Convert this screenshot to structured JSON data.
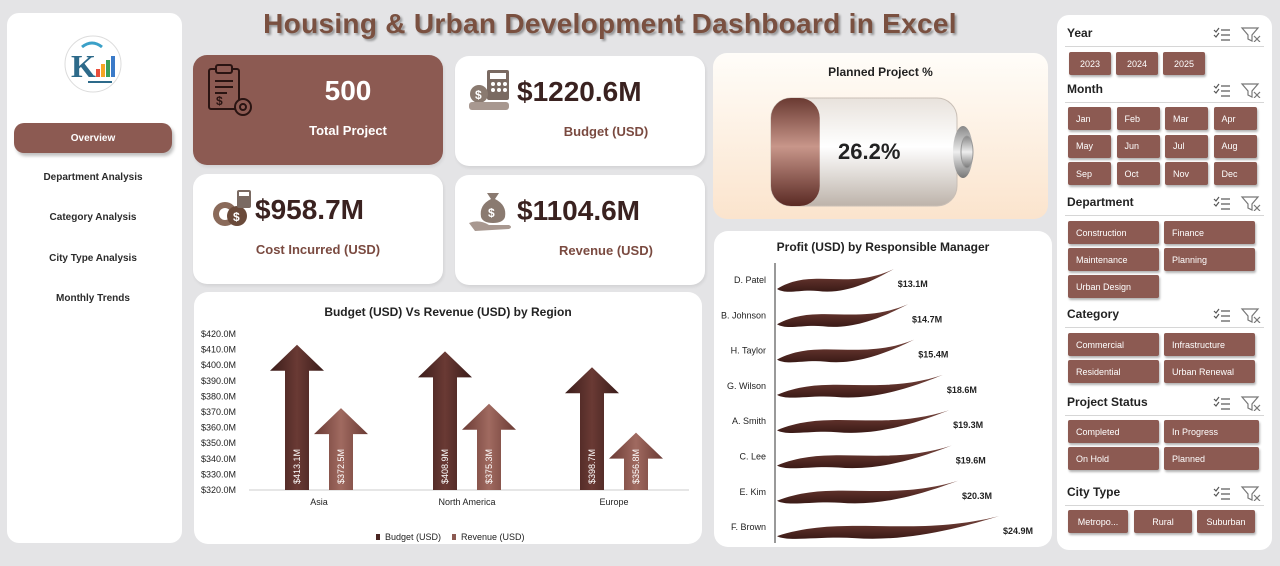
{
  "title": "Housing & Urban Development Dashboard in Excel",
  "nav": {
    "items": [
      {
        "label": "Overview",
        "active": true
      },
      {
        "label": "Department Analysis",
        "active": false
      },
      {
        "label": "Category Analysis",
        "active": false
      },
      {
        "label": "City Type Analysis",
        "active": false
      },
      {
        "label": "Monthly Trends",
        "active": false
      }
    ]
  },
  "kpis": {
    "total_project": {
      "value": "500",
      "label": "Total Project"
    },
    "budget": {
      "value": "$1220.6M",
      "label": "Budget (USD)"
    },
    "cost": {
      "value": "$958.7M",
      "label": "Cost Incurred (USD)"
    },
    "revenue": {
      "value": "$1104.6M",
      "label": "Revenue (USD)"
    }
  },
  "planned": {
    "title": "Planned Project %",
    "value": "26.2%",
    "fraction": 0.262
  },
  "colors": {
    "accent": "#8c5a52",
    "dark": "#4a2622",
    "text": "#3a2220"
  },
  "filters": {
    "year": {
      "title": "Year",
      "options": [
        "2023",
        "2024",
        "2025"
      ]
    },
    "month": {
      "title": "Month",
      "options": [
        "Jan",
        "Feb",
        "Mar",
        "Apr",
        "May",
        "Jun",
        "Jul",
        "Aug",
        "Sep",
        "Oct",
        "Nov",
        "Dec"
      ]
    },
    "department": {
      "title": "Department",
      "options": [
        "Construction",
        "Finance",
        "Maintenance",
        "Planning",
        "Urban Design"
      ]
    },
    "category": {
      "title": "Category",
      "options": [
        "Commercial",
        "Infrastructure",
        "Residential",
        "Urban Renewal"
      ]
    },
    "status": {
      "title": "Project Status",
      "options": [
        "Completed",
        "In Progress",
        "On Hold",
        "Planned"
      ]
    },
    "city_type": {
      "title": "City Type",
      "options": [
        "Metropo...",
        "Rural",
        "Suburban"
      ]
    }
  },
  "chart_data": [
    {
      "type": "bar",
      "title": "Budget (USD) Vs Revenue (USD) by Region",
      "categories": [
        "Asia",
        "North America",
        "Europe"
      ],
      "series": [
        {
          "name": "Budget (USD)",
          "values": [
            413.1,
            408.9,
            398.7
          ],
          "labels": [
            "$413.1M",
            "$408.9M",
            "$398.7M"
          ]
        },
        {
          "name": "Revenue (USD)",
          "values": [
            372.5,
            375.3,
            356.8
          ],
          "labels": [
            "$372.5M",
            "$375.3M",
            "$356.8M"
          ]
        }
      ],
      "yticks": [
        "$420.0M",
        "$410.0M",
        "$400.0M",
        "$390.0M",
        "$380.0M",
        "$370.0M",
        "$360.0M",
        "$350.0M",
        "$340.0M",
        "$330.0M",
        "$320.0M"
      ],
      "ylim": [
        320,
        420
      ],
      "legend": "bottom"
    },
    {
      "type": "bar",
      "title": "Profit (USD) by Responsible Manager",
      "categories": [
        "D. Patel",
        "B. Johnson",
        "H. Taylor",
        "G. Wilson",
        "A. Smith",
        "C. Lee",
        "E. Kim",
        "F. Brown"
      ],
      "values": [
        13.1,
        14.7,
        15.4,
        18.6,
        19.3,
        19.6,
        20.3,
        24.9
      ],
      "labels": [
        "$13.1M",
        "$14.7M",
        "$15.4M",
        "$18.6M",
        "$19.3M",
        "$19.6M",
        "$20.3M",
        "$24.9M"
      ]
    }
  ]
}
